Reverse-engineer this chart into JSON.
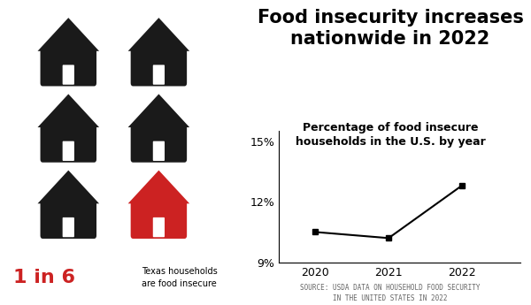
{
  "title": "Food insecurity increases\nnationwide in 2022",
  "subtitle": "Percentage of food insecure\nhouseholds in the U.S. by year",
  "source": "SOURCE: USDA DATA ON HOUSEHOLD FOOD SECURITY\nIN THE UNITED STATES IN 2022",
  "years": [
    2020,
    2021,
    2022
  ],
  "values": [
    10.5,
    10.2,
    12.8
  ],
  "ylim": [
    9,
    15.5
  ],
  "yticks": [
    9,
    12,
    15
  ],
  "ytick_labels": [
    "9%",
    "12%",
    "15%"
  ],
  "line_color": "#000000",
  "marker_color": "#000000",
  "bg_color": "#ffffff",
  "house_black": "#1a1a1a",
  "house_red": "#cc2222",
  "text_red": "#cc2222",
  "label_1in6": "1 in 6",
  "label_desc": "Texas households\nare food insecure",
  "title_fontsize": 15,
  "subtitle_fontsize": 9,
  "source_fontsize": 5.5
}
